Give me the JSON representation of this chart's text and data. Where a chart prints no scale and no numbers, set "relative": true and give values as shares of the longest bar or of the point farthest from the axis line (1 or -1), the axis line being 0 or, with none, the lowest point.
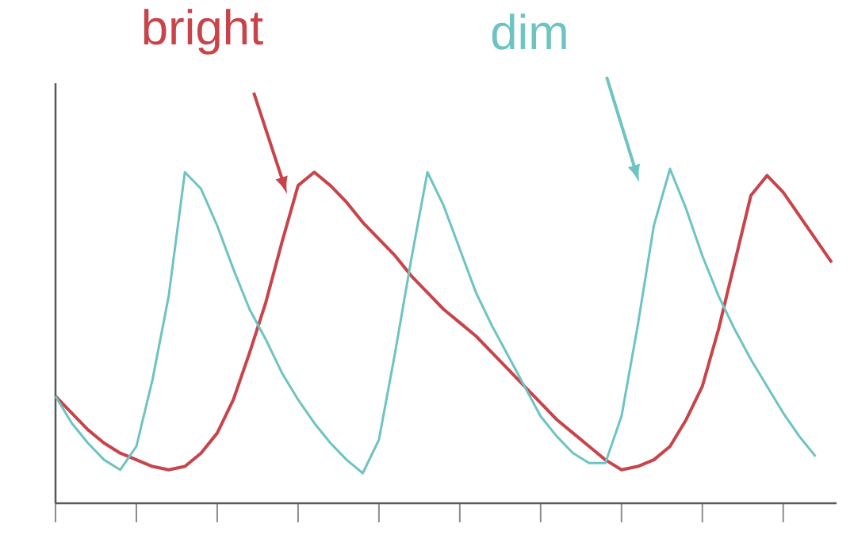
{
  "chart_data": {
    "type": "line",
    "relative": true,
    "line_style": "solid",
    "marker": "none",
    "categories": [
      null,
      null,
      null,
      null,
      null,
      null,
      null,
      null,
      null,
      null,
      null,
      null,
      null,
      null,
      null,
      null,
      null,
      null,
      null,
      null,
      null,
      null,
      null,
      null,
      null,
      null,
      null,
      null,
      null,
      null,
      null,
      null,
      null,
      null,
      null,
      null,
      null,
      null,
      null,
      null,
      null,
      null,
      null,
      null,
      null,
      null,
      null,
      null,
      null
    ],
    "series": [
      {
        "name": "bright",
        "color": "#c8444a",
        "values": [
          0.32,
          0.27,
          0.22,
          0.18,
          0.15,
          0.13,
          0.11,
          0.1,
          0.11,
          0.15,
          0.21,
          0.31,
          0.45,
          0.6,
          0.78,
          0.95,
          0.99,
          0.95,
          0.9,
          0.84,
          0.79,
          0.74,
          0.68,
          0.63,
          0.58,
          0.54,
          0.5,
          0.45,
          0.4,
          0.35,
          0.3,
          0.25,
          0.21,
          0.17,
          0.13,
          0.1,
          0.11,
          0.13,
          0.17,
          0.25,
          0.35,
          0.52,
          0.72,
          0.92,
          0.98,
          0.93,
          0.86,
          0.79,
          0.72
        ]
      },
      {
        "name": "dim",
        "color": "#6ec3c3",
        "values": [
          0.32,
          0.24,
          0.18,
          0.13,
          0.1,
          0.17,
          0.37,
          0.62,
          0.99,
          0.94,
          0.83,
          0.7,
          0.58,
          0.49,
          0.39,
          0.31,
          0.24,
          0.18,
          0.13,
          0.09,
          0.19,
          0.45,
          0.73,
          0.99,
          0.89,
          0.76,
          0.63,
          0.53,
          0.44,
          0.35,
          0.26,
          0.2,
          0.15,
          0.12,
          0.12,
          0.26,
          0.53,
          0.83,
          1.0,
          0.88,
          0.74,
          0.62,
          0.52,
          0.43,
          0.35,
          0.27,
          0.2,
          0.14,
          null
        ]
      }
    ]
  }
}
